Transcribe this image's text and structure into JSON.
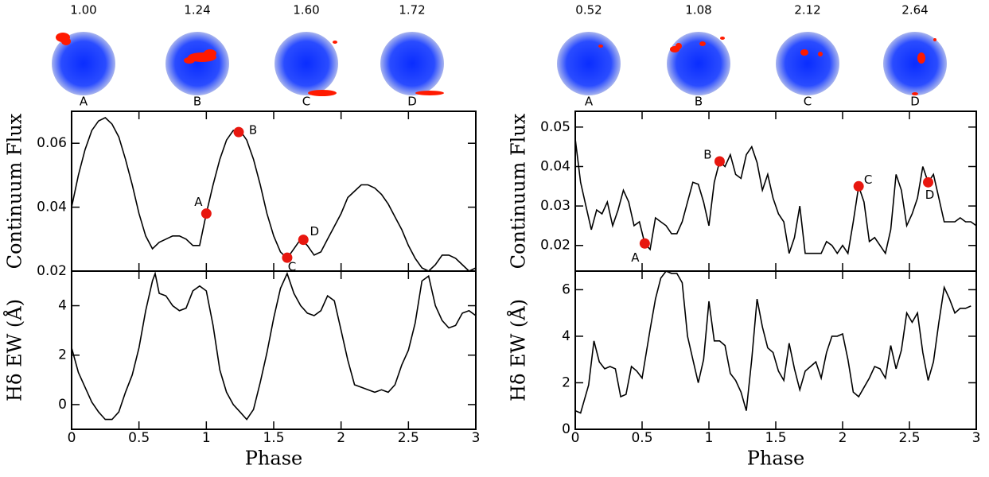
{
  "chart_data": [
    {
      "type": "line",
      "ylabel": "Continuum Flux",
      "color": "#000000",
      "xlim": [
        0,
        3
      ],
      "xticks": [
        0,
        0.5,
        1,
        1.5,
        2,
        2.5,
        3
      ],
      "ylim": [
        0.02,
        0.07
      ],
      "yticks": [
        0.02,
        0.04,
        0.06
      ],
      "x": [
        0,
        0.05,
        0.1,
        0.15,
        0.2,
        0.25,
        0.3,
        0.35,
        0.4,
        0.45,
        0.5,
        0.55,
        0.6,
        0.65,
        0.7,
        0.75,
        0.8,
        0.85,
        0.9,
        0.95,
        1.0,
        1.05,
        1.1,
        1.15,
        1.2,
        1.25,
        1.3,
        1.35,
        1.4,
        1.45,
        1.5,
        1.55,
        1.6,
        1.65,
        1.7,
        1.75,
        1.8,
        1.85,
        1.9,
        1.95,
        2.0,
        2.05,
        2.1,
        2.15,
        2.2,
        2.25,
        2.3,
        2.35,
        2.4,
        2.45,
        2.5,
        2.55,
        2.6,
        2.65,
        2.7,
        2.75,
        2.8,
        2.85,
        2.9,
        2.95,
        3.0
      ],
      "values": [
        0.04,
        0.05,
        0.058,
        0.064,
        0.067,
        0.068,
        0.066,
        0.062,
        0.055,
        0.047,
        0.038,
        0.031,
        0.027,
        0.029,
        0.03,
        0.031,
        0.031,
        0.03,
        0.028,
        0.028,
        0.038,
        0.047,
        0.055,
        0.061,
        0.064,
        0.064,
        0.061,
        0.055,
        0.047,
        0.038,
        0.031,
        0.026,
        0.024,
        0.027,
        0.03,
        0.028,
        0.025,
        0.026,
        0.03,
        0.034,
        0.038,
        0.043,
        0.045,
        0.047,
        0.047,
        0.046,
        0.044,
        0.041,
        0.037,
        0.033,
        0.028,
        0.024,
        0.021,
        0.02,
        0.022,
        0.025,
        0.025,
        0.024,
        0.022,
        0.02,
        0.021
      ],
      "highlights": {
        "color": "#e8170f",
        "labels": [
          "A",
          "B",
          "C",
          "D"
        ],
        "x": [
          1.0,
          1.24,
          1.6,
          1.72
        ],
        "values": [
          0.038,
          0.0635,
          0.0242,
          0.0298
        ]
      },
      "maps": {
        "phases": [
          "1.00",
          "1.24",
          "1.60",
          "1.72"
        ],
        "labels": [
          "A",
          "B",
          "C",
          "D"
        ]
      }
    },
    {
      "type": "line",
      "ylabel": "Hδ EW  (Å)",
      "xlabel": "Phase",
      "color": "#000000",
      "xlim": [
        0,
        3
      ],
      "xticks": [
        0,
        0.5,
        1,
        1.5,
        2,
        2.5,
        3
      ],
      "ylim": [
        -1,
        5.4
      ],
      "yticks": [
        0,
        2,
        4
      ],
      "x": [
        0,
        0.05,
        0.1,
        0.15,
        0.2,
        0.25,
        0.3,
        0.35,
        0.4,
        0.45,
        0.5,
        0.55,
        0.6,
        0.62,
        0.65,
        0.7,
        0.75,
        0.8,
        0.85,
        0.9,
        0.95,
        1.0,
        1.05,
        1.1,
        1.15,
        1.2,
        1.25,
        1.3,
        1.35,
        1.4,
        1.45,
        1.5,
        1.55,
        1.6,
        1.65,
        1.7,
        1.75,
        1.8,
        1.85,
        1.9,
        1.95,
        2.0,
        2.05,
        2.1,
        2.15,
        2.2,
        2.25,
        2.3,
        2.35,
        2.4,
        2.45,
        2.5,
        2.55,
        2.6,
        2.65,
        2.7,
        2.75,
        2.8,
        2.85,
        2.9,
        2.95,
        3.0
      ],
      "values": [
        2.3,
        1.3,
        0.7,
        0.1,
        -0.3,
        -0.6,
        -0.6,
        -0.3,
        0.5,
        1.2,
        2.3,
        3.8,
        5.0,
        5.3,
        4.5,
        4.4,
        4.0,
        3.8,
        3.9,
        4.6,
        4.8,
        4.6,
        3.2,
        1.4,
        0.5,
        0.0,
        -0.3,
        -0.6,
        -0.2,
        0.9,
        2.1,
        3.5,
        4.7,
        5.3,
        4.5,
        4.0,
        3.7,
        3.6,
        3.8,
        4.4,
        4.2,
        3.0,
        1.8,
        0.8,
        0.7,
        0.6,
        0.5,
        0.6,
        0.5,
        0.8,
        1.6,
        2.2,
        3.3,
        5.0,
        5.2,
        4.0,
        3.4,
        3.1,
        3.2,
        3.7,
        3.8,
        3.6
      ]
    },
    {
      "type": "line",
      "ylabel": "Continuum Flux",
      "color": "#000000",
      "xlim": [
        0,
        3
      ],
      "xticks": [
        0,
        0.5,
        1,
        1.5,
        2,
        2.5,
        3
      ],
      "ylim": [
        0.0135,
        0.054
      ],
      "yticks": [
        0.02,
        0.03,
        0.04,
        0.05
      ],
      "x": [
        0,
        0.04,
        0.08,
        0.12,
        0.16,
        0.2,
        0.24,
        0.28,
        0.32,
        0.36,
        0.4,
        0.44,
        0.48,
        0.52,
        0.56,
        0.6,
        0.64,
        0.68,
        0.72,
        0.76,
        0.8,
        0.84,
        0.88,
        0.92,
        0.96,
        1.0,
        1.04,
        1.08,
        1.12,
        1.16,
        1.2,
        1.24,
        1.28,
        1.32,
        1.36,
        1.4,
        1.44,
        1.48,
        1.52,
        1.56,
        1.6,
        1.64,
        1.68,
        1.72,
        1.76,
        1.8,
        1.84,
        1.88,
        1.92,
        1.96,
        2.0,
        2.04,
        2.08,
        2.12,
        2.16,
        2.2,
        2.24,
        2.28,
        2.32,
        2.36,
        2.4,
        2.44,
        2.48,
        2.52,
        2.56,
        2.6,
        2.64,
        2.68,
        2.72,
        2.76,
        2.8,
        2.84,
        2.88,
        2.92,
        2.96,
        3.0
      ],
      "values": [
        0.047,
        0.036,
        0.03,
        0.024,
        0.029,
        0.028,
        0.031,
        0.025,
        0.029,
        0.034,
        0.031,
        0.025,
        0.026,
        0.0205,
        0.019,
        0.027,
        0.026,
        0.025,
        0.023,
        0.023,
        0.026,
        0.031,
        0.036,
        0.0355,
        0.031,
        0.025,
        0.036,
        0.0413,
        0.04,
        0.043,
        0.038,
        0.037,
        0.043,
        0.045,
        0.041,
        0.034,
        0.038,
        0.032,
        0.028,
        0.026,
        0.018,
        0.022,
        0.03,
        0.018,
        0.018,
        0.018,
        0.018,
        0.021,
        0.02,
        0.018,
        0.02,
        0.018,
        0.026,
        0.035,
        0.031,
        0.021,
        0.022,
        0.02,
        0.018,
        0.024,
        0.038,
        0.034,
        0.025,
        0.028,
        0.032,
        0.04,
        0.036,
        0.038,
        0.032,
        0.026,
        0.026,
        0.026,
        0.027,
        0.026,
        0.026,
        0.025
      ],
      "highlights": {
        "color": "#e8170f",
        "labels": [
          "A",
          "B",
          "C",
          "D"
        ],
        "x": [
          0.52,
          1.08,
          2.12,
          2.64
        ],
        "values": [
          0.0205,
          0.0413,
          0.035,
          0.036
        ]
      },
      "maps": {
        "phases": [
          "0.52",
          "1.08",
          "2.12",
          "2.64"
        ],
        "labels": [
          "A",
          "B",
          "C",
          "D"
        ]
      }
    },
    {
      "type": "line",
      "ylabel": "Hδ EW  (Å)",
      "xlabel": "Phase",
      "color": "#000000",
      "xlim": [
        0,
        3
      ],
      "xticks": [
        0,
        0.5,
        1,
        1.5,
        2,
        2.5,
        3
      ],
      "ylim": [
        0,
        6.8
      ],
      "yticks": [
        0,
        2,
        4,
        6
      ],
      "x": [
        0,
        0.04,
        0.1,
        0.14,
        0.18,
        0.22,
        0.26,
        0.3,
        0.34,
        0.38,
        0.42,
        0.46,
        0.5,
        0.56,
        0.6,
        0.64,
        0.68,
        0.72,
        0.76,
        0.8,
        0.84,
        0.88,
        0.92,
        0.96,
        1.0,
        1.04,
        1.08,
        1.12,
        1.16,
        1.2,
        1.24,
        1.28,
        1.32,
        1.36,
        1.4,
        1.44,
        1.48,
        1.52,
        1.56,
        1.6,
        1.64,
        1.68,
        1.72,
        1.76,
        1.8,
        1.84,
        1.88,
        1.92,
        1.96,
        2.0,
        2.04,
        2.08,
        2.12,
        2.16,
        2.2,
        2.24,
        2.28,
        2.32,
        2.36,
        2.4,
        2.44,
        2.48,
        2.52,
        2.56,
        2.6,
        2.64,
        2.68,
        2.72,
        2.76,
        2.8,
        2.84,
        2.88,
        2.92,
        2.96
      ],
      "values": [
        0.8,
        0.7,
        1.9,
        3.8,
        2.9,
        2.6,
        2.7,
        2.6,
        1.4,
        1.5,
        2.7,
        2.5,
        2.2,
        4.3,
        5.6,
        6.5,
        6.8,
        6.7,
        6.7,
        6.3,
        4.0,
        3.0,
        2.0,
        3.0,
        5.5,
        3.8,
        3.8,
        3.6,
        2.4,
        2.1,
        1.6,
        0.8,
        3.0,
        5.6,
        4.4,
        3.5,
        3.3,
        2.5,
        2.1,
        3.7,
        2.6,
        1.7,
        2.5,
        2.7,
        2.9,
        2.2,
        3.3,
        4.0,
        4.0,
        4.1,
        3.0,
        1.6,
        1.4,
        1.8,
        2.2,
        2.7,
        2.6,
        2.2,
        3.6,
        2.6,
        3.4,
        5.0,
        4.6,
        5.0,
        3.3,
        2.1,
        2.9,
        4.6,
        6.1,
        5.6,
        5.0,
        5.2,
        5.2,
        5.3
      ]
    }
  ]
}
